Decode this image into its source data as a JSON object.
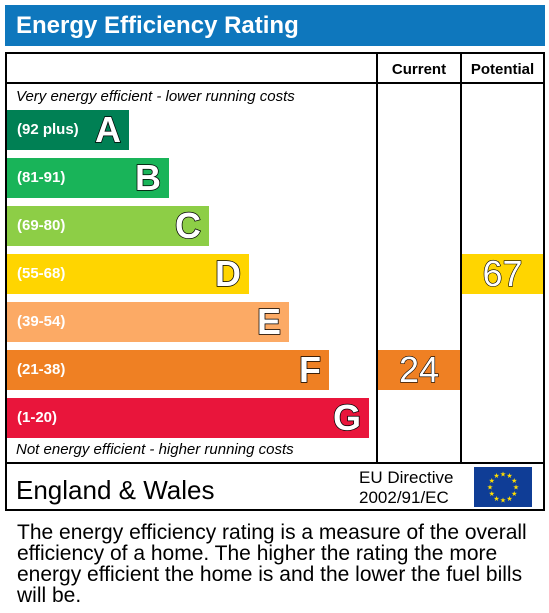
{
  "header": {
    "title": "Energy Efficiency Rating"
  },
  "columns": {
    "current": "Current",
    "potential": "Potential"
  },
  "notes": {
    "top": "Very energy efficient - lower running costs",
    "bottom": "Not energy efficient - higher running costs"
  },
  "footer": {
    "region": "England & Wales",
    "directive_line1": "EU Directive",
    "directive_line2": "2002/91/EC"
  },
  "caption": "The energy efficiency rating is a measure of the overall efficiency of a home. The higher the rating the more energy efficient the home is and the lower the fuel bills will be.",
  "chart_data": {
    "type": "bar",
    "categories": [
      "A",
      "B",
      "C",
      "D",
      "E",
      "F",
      "G"
    ],
    "bands": [
      {
        "letter": "A",
        "range": "(92 plus)",
        "color": "#008054"
      },
      {
        "letter": "B",
        "range": "(81-91)",
        "color": "#19b459"
      },
      {
        "letter": "C",
        "range": "(69-80)",
        "color": "#8dce46"
      },
      {
        "letter": "D",
        "range": "(55-68)",
        "color": "#ffd500"
      },
      {
        "letter": "E",
        "range": "(39-54)",
        "color": "#fcaa65"
      },
      {
        "letter": "F",
        "range": "(21-38)",
        "color": "#ef8023"
      },
      {
        "letter": "G",
        "range": "(1-20)",
        "color": "#e9153b"
      }
    ],
    "current": {
      "value": "24",
      "band": "F",
      "color": "#ef8023"
    },
    "potential": {
      "value": "67",
      "band": "D",
      "color": "#ffd500"
    }
  }
}
